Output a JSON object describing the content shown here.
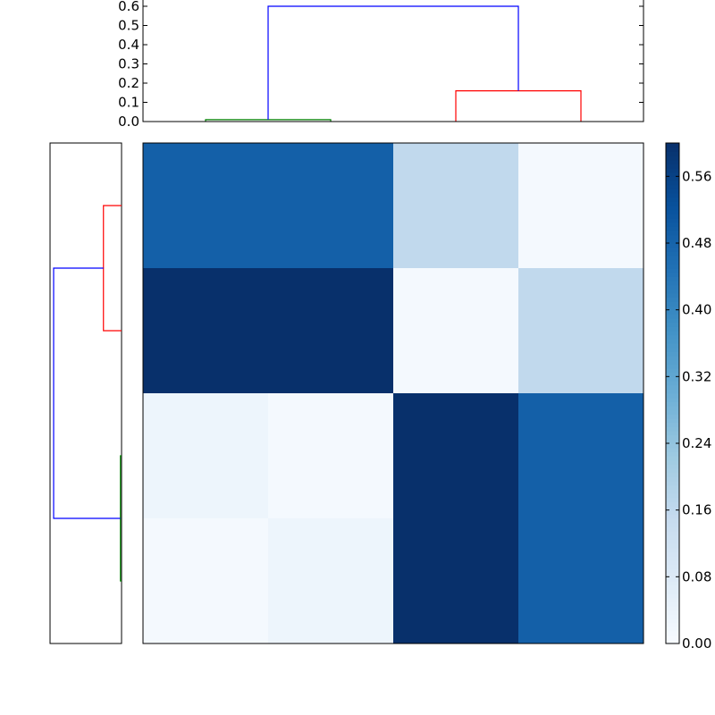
{
  "chart_data": [
    {
      "type": "dendrogram",
      "orientation": "top",
      "ylim": [
        0,
        0.6
      ],
      "y_ticks": [
        0.0,
        0.1,
        0.2,
        0.3,
        0.4,
        0.5,
        0.6
      ],
      "y_tick_labels": [
        "0.0",
        "0.1",
        "0.2",
        "0.3",
        "0.4",
        "0.5",
        "0.6"
      ],
      "leaf_count": 4,
      "links": [
        {
          "left": 0.5,
          "right": 1.5,
          "height": 0.01,
          "left_base": 0,
          "right_base": 0,
          "color": "#008000"
        },
        {
          "left": 2.5,
          "right": 3.5,
          "height": 0.16,
          "left_base": 0,
          "right_base": 0,
          "color": "#ff0000"
        },
        {
          "left": 1.0,
          "right": 3.0,
          "height": 0.6,
          "left_base": 0.01,
          "right_base": 0.16,
          "color": "#0000ff"
        }
      ]
    },
    {
      "type": "dendrogram",
      "orientation": "left",
      "leaf_count": 4,
      "links": [
        {
          "left": 0.5,
          "right": 1.5,
          "height": 0.16,
          "left_base": 0,
          "right_base": 0,
          "color": "#ff0000"
        },
        {
          "left": 2.5,
          "right": 3.5,
          "height": 0.01,
          "left_base": 0,
          "right_base": 0,
          "color": "#008000"
        },
        {
          "left": 1.0,
          "right": 3.0,
          "height": 0.6,
          "left_base": 0.16,
          "right_base": 0.01,
          "color": "#0000ff"
        }
      ]
    },
    {
      "type": "heatmap",
      "rows": 4,
      "cols": 4,
      "values": [
        [
          0.49,
          0.49,
          0.16,
          0.01
        ],
        [
          0.6,
          0.6,
          0.01,
          0.16
        ],
        [
          0.03,
          0.01,
          0.6,
          0.49
        ],
        [
          0.01,
          0.03,
          0.6,
          0.49
        ]
      ],
      "colormap": "Blues",
      "colormap_stops": [
        "#f7fbff",
        "#deebf7",
        "#c6dbef",
        "#9ecae1",
        "#6baed6",
        "#4292c6",
        "#2171b5",
        "#08519c",
        "#08306b"
      ],
      "vmin": 0.0,
      "vmax": 0.6,
      "colorbar": {
        "ticks": [
          0.0,
          0.08,
          0.16,
          0.24,
          0.32,
          0.4,
          0.48,
          0.56
        ],
        "tick_labels": [
          "0.00",
          "0.08",
          "0.16",
          "0.24",
          "0.32",
          "0.40",
          "0.48",
          "0.56"
        ]
      }
    }
  ]
}
